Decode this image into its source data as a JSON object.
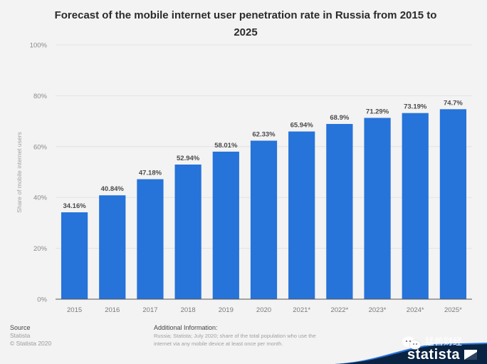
{
  "chart_data": {
    "type": "bar",
    "title": "Forecast of the mobile internet user penetration rate in Russia from 2015 to 2025",
    "xlabel": "",
    "ylabel": "Share of mobile internet users",
    "categories": [
      "2015",
      "2016",
      "2017",
      "2018",
      "2019",
      "2020",
      "2021*",
      "2022*",
      "2023*",
      "2024*",
      "2025*"
    ],
    "values": [
      34.16,
      40.84,
      47.18,
      52.94,
      58.01,
      62.33,
      65.94,
      68.9,
      71.29,
      73.19,
      74.7
    ],
    "data_labels": [
      "34.16%",
      "40.84%",
      "47.18%",
      "52.94%",
      "58.01%",
      "62.33%",
      "65.94%",
      "68.9%",
      "71.29%",
      "73.19%",
      "74.7%"
    ],
    "ylim": [
      0,
      100
    ],
    "yticks": [
      0,
      20,
      40,
      60,
      80,
      100
    ],
    "ytick_labels": [
      "0%",
      "20%",
      "40%",
      "60%",
      "80%",
      "100%"
    ],
    "grid": true,
    "bar_color": "#2673d9",
    "legend": "none"
  },
  "footer": {
    "source_heading": "Source",
    "source_lines": [
      "Statista",
      "© Statista 2020"
    ],
    "additional_heading": "Additional Information:",
    "additional_lines": [
      "Russia; Statista; July 2020; share of the total population who use the",
      "internet via any mobile device at least once per month."
    ]
  },
  "branding": {
    "logo_text": "statista",
    "watermark_text": "猛兽财经",
    "brand_color": "#0b2342",
    "accent_color": "#2673d9"
  }
}
